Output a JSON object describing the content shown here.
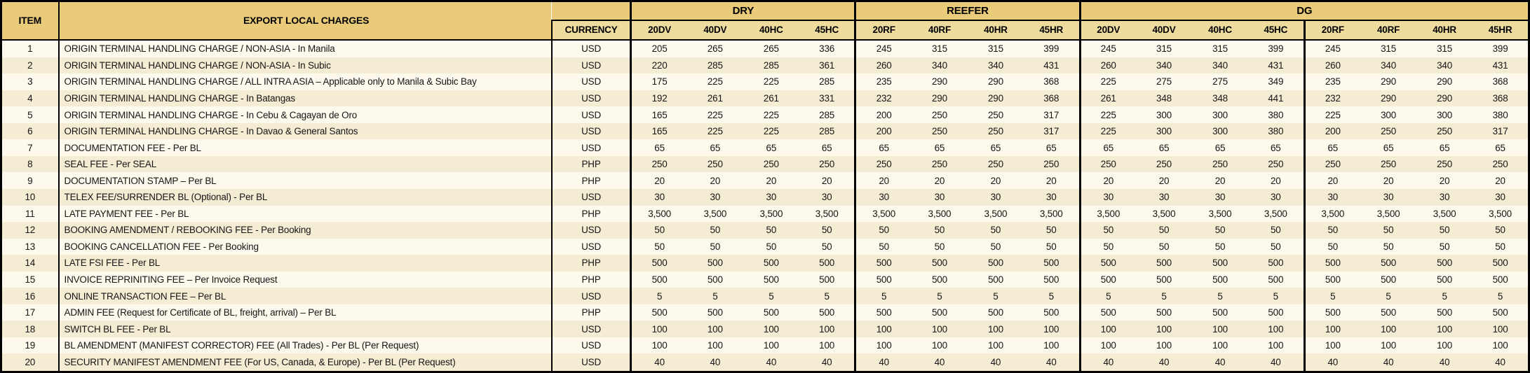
{
  "colors": {
    "header_gold": "#e9cb79",
    "subheader_gold": "#eedc9e",
    "row_light": "#fdf9ec",
    "row_dark": "#f4ecd3",
    "border": "#000000"
  },
  "table": {
    "header": {
      "item": "ITEM",
      "charges": "EXPORT LOCAL CHARGES",
      "currency": "CURRENCY",
      "groups": [
        {
          "label": "DRY",
          "columns": [
            "20DV",
            "40DV",
            "40HC",
            "45HC"
          ]
        },
        {
          "label": "REEFER",
          "columns": [
            "20RF",
            "40RF",
            "40HR",
            "45HR"
          ]
        },
        {
          "label": "DG",
          "columns": [
            "20DV",
            "40DV",
            "40HC",
            "45HC",
            "20RF",
            "40RF",
            "40HR",
            "45HR"
          ]
        }
      ]
    },
    "rows": [
      {
        "item": "1",
        "description": "ORIGIN TERMINAL HANDLING CHARGE / NON-ASIA - In Manila",
        "currency": "USD",
        "values": [
          "205",
          "265",
          "265",
          "336",
          "245",
          "315",
          "315",
          "399",
          "245",
          "315",
          "315",
          "399",
          "245",
          "315",
          "315",
          "399"
        ]
      },
      {
        "item": "2",
        "description": "ORIGIN TERMINAL HANDLING CHARGE / NON-ASIA - In Subic",
        "currency": "USD",
        "values": [
          "220",
          "285",
          "285",
          "361",
          "260",
          "340",
          "340",
          "431",
          "260",
          "340",
          "340",
          "431",
          "260",
          "340",
          "340",
          "431"
        ]
      },
      {
        "item": "3",
        "description": "ORIGIN TERMINAL HANDLING CHARGE / ALL INTRA ASIA – Applicable only to Manila & Subic Bay",
        "currency": "USD",
        "values": [
          "175",
          "225",
          "225",
          "285",
          "235",
          "290",
          "290",
          "368",
          "225",
          "275",
          "275",
          "349",
          "235",
          "290",
          "290",
          "368"
        ]
      },
      {
        "item": "4",
        "description": "ORIGIN TERMINAL HANDLING CHARGE - In Batangas",
        "currency": "USD",
        "values": [
          "192",
          "261",
          "261",
          "331",
          "232",
          "290",
          "290",
          "368",
          "261",
          "348",
          "348",
          "441",
          "232",
          "290",
          "290",
          "368"
        ]
      },
      {
        "item": "5",
        "description": "ORIGIN TERMINAL HANDLING CHARGE - In Cebu & Cagayan de Oro",
        "currency": "USD",
        "values": [
          "165",
          "225",
          "225",
          "285",
          "200",
          "250",
          "250",
          "317",
          "225",
          "300",
          "300",
          "380",
          "225",
          "300",
          "300",
          "380"
        ]
      },
      {
        "item": "6",
        "description": "ORIGIN TERMINAL HANDLING CHARGE - In Davao & General Santos",
        "currency": "USD",
        "values": [
          "165",
          "225",
          "225",
          "285",
          "200",
          "250",
          "250",
          "317",
          "225",
          "300",
          "300",
          "380",
          "200",
          "250",
          "250",
          "317"
        ]
      },
      {
        "item": "7",
        "description": "DOCUMENTATION FEE - Per BL",
        "currency": "USD",
        "values": [
          "65",
          "65",
          "65",
          "65",
          "65",
          "65",
          "65",
          "65",
          "65",
          "65",
          "65",
          "65",
          "65",
          "65",
          "65",
          "65"
        ]
      },
      {
        "item": "8",
        "description": "SEAL FEE - Per SEAL",
        "currency": "PHP",
        "values": [
          "250",
          "250",
          "250",
          "250",
          "250",
          "250",
          "250",
          "250",
          "250",
          "250",
          "250",
          "250",
          "250",
          "250",
          "250",
          "250"
        ]
      },
      {
        "item": "9",
        "description": "DOCUMENTATION STAMP – Per BL",
        "currency": "PHP",
        "values": [
          "20",
          "20",
          "20",
          "20",
          "20",
          "20",
          "20",
          "20",
          "20",
          "20",
          "20",
          "20",
          "20",
          "20",
          "20",
          "20"
        ]
      },
      {
        "item": "10",
        "description": "TELEX FEE/SURRENDER BL (Optional) - Per BL",
        "currency": "USD",
        "values": [
          "30",
          "30",
          "30",
          "30",
          "30",
          "30",
          "30",
          "30",
          "30",
          "30",
          "30",
          "30",
          "30",
          "30",
          "30",
          "30"
        ]
      },
      {
        "item": "11",
        "description": "LATE PAYMENT FEE - Per BL",
        "currency": "PHP",
        "values": [
          "3,500",
          "3,500",
          "3,500",
          "3,500",
          "3,500",
          "3,500",
          "3,500",
          "3,500",
          "3,500",
          "3,500",
          "3,500",
          "3,500",
          "3,500",
          "3,500",
          "3,500",
          "3,500"
        ]
      },
      {
        "item": "12",
        "description": "BOOKING AMENDMENT / REBOOKING FEE - Per Booking",
        "currency": "USD",
        "values": [
          "50",
          "50",
          "50",
          "50",
          "50",
          "50",
          "50",
          "50",
          "50",
          "50",
          "50",
          "50",
          "50",
          "50",
          "50",
          "50"
        ]
      },
      {
        "item": "13",
        "description": "BOOKING CANCELLATION FEE - Per Booking",
        "currency": "USD",
        "values": [
          "50",
          "50",
          "50",
          "50",
          "50",
          "50",
          "50",
          "50",
          "50",
          "50",
          "50",
          "50",
          "50",
          "50",
          "50",
          "50"
        ]
      },
      {
        "item": "14",
        "description": "LATE FSI FEE - Per BL",
        "currency": "PHP",
        "values": [
          "500",
          "500",
          "500",
          "500",
          "500",
          "500",
          "500",
          "500",
          "500",
          "500",
          "500",
          "500",
          "500",
          "500",
          "500",
          "500"
        ]
      },
      {
        "item": "15",
        "description": "INVOICE REPRINITING FEE – Per Invoice Request",
        "currency": "PHP",
        "values": [
          "500",
          "500",
          "500",
          "500",
          "500",
          "500",
          "500",
          "500",
          "500",
          "500",
          "500",
          "500",
          "500",
          "500",
          "500",
          "500"
        ]
      },
      {
        "item": "16",
        "description": "ONLINE TRANSACTION FEE – Per BL",
        "currency": "USD",
        "values": [
          "5",
          "5",
          "5",
          "5",
          "5",
          "5",
          "5",
          "5",
          "5",
          "5",
          "5",
          "5",
          "5",
          "5",
          "5",
          "5"
        ]
      },
      {
        "item": "17",
        "description": "ADMIN FEE (Request for Certificate of BL, freight, arrival) – Per BL",
        "currency": "PHP",
        "values": [
          "500",
          "500",
          "500",
          "500",
          "500",
          "500",
          "500",
          "500",
          "500",
          "500",
          "500",
          "500",
          "500",
          "500",
          "500",
          "500"
        ]
      },
      {
        "item": "18",
        "description": "SWITCH BL FEE - Per BL",
        "currency": "USD",
        "values": [
          "100",
          "100",
          "100",
          "100",
          "100",
          "100",
          "100",
          "100",
          "100",
          "100",
          "100",
          "100",
          "100",
          "100",
          "100",
          "100"
        ]
      },
      {
        "item": "19",
        "description": "BL AMENDMENT (MANIFEST CORRECTOR) FEE (All Trades) - Per BL (Per Request)",
        "currency": "USD",
        "values": [
          "100",
          "100",
          "100",
          "100",
          "100",
          "100",
          "100",
          "100",
          "100",
          "100",
          "100",
          "100",
          "100",
          "100",
          "100",
          "100"
        ]
      },
      {
        "item": "20",
        "description": "SECURITY MANIFEST AMENDMENT FEE (For US, Canada, & Europe) - Per BL (Per Request)",
        "currency": "USD",
        "values": [
          "40",
          "40",
          "40",
          "40",
          "40",
          "40",
          "40",
          "40",
          "40",
          "40",
          "40",
          "40",
          "40",
          "40",
          "40",
          "40"
        ]
      }
    ]
  }
}
